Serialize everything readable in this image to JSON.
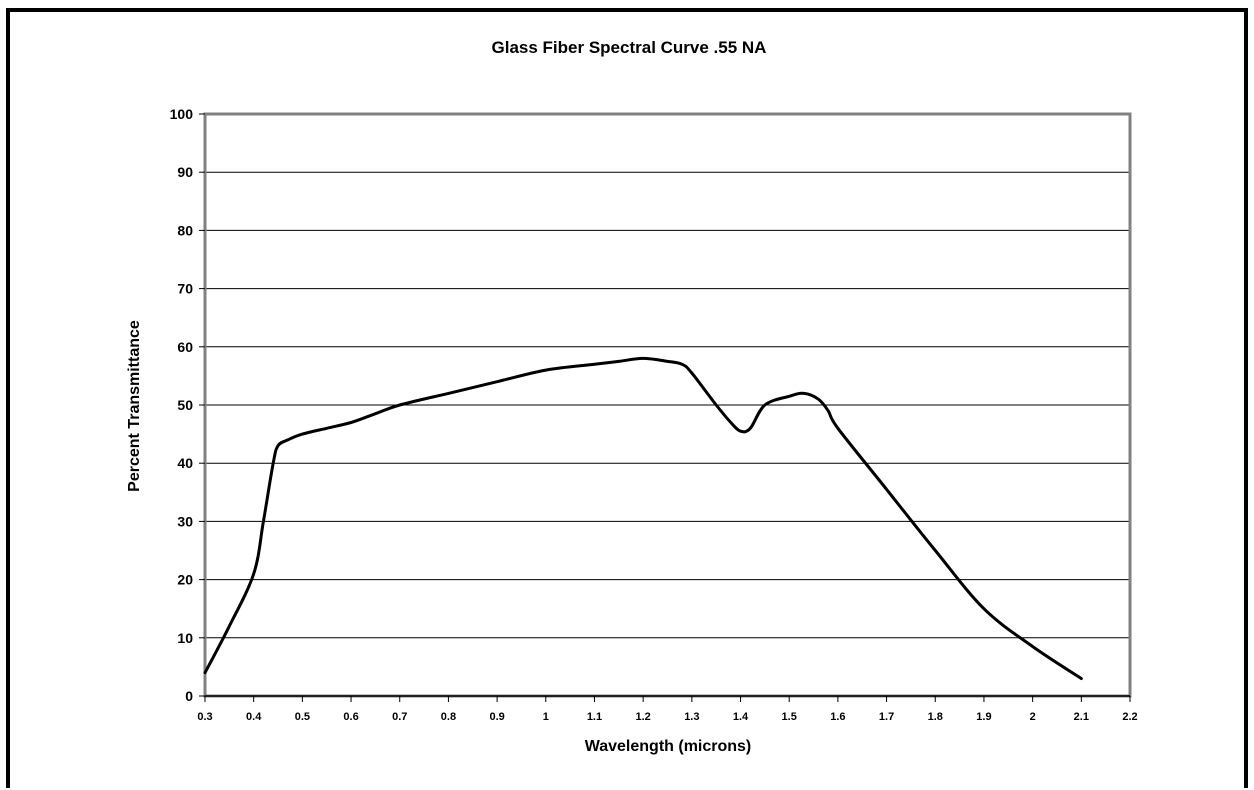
{
  "chart_data": {
    "type": "line",
    "title": "Glass Fiber Spectral Curve .55 NA",
    "xlabel": "Wavelength (microns)",
    "ylabel": "Percent Transmittance",
    "xlim": [
      0.3,
      2.2
    ],
    "ylim": [
      0,
      100
    ],
    "grid": "horizontal",
    "xticks": [
      "0.3",
      "0.4",
      "0.5",
      "0.6",
      "0.7",
      "0.8",
      "0.9",
      "1",
      "1.1",
      "1.2",
      "1.3",
      "1.4",
      "1.5",
      "1.6",
      "1.7",
      "1.8",
      "1.9",
      "2",
      "2.1",
      "2.2"
    ],
    "yticks": [
      "0",
      "10",
      "20",
      "30",
      "40",
      "50",
      "60",
      "70",
      "80",
      "90",
      "100"
    ],
    "series": [
      {
        "x": [
          0.3,
          0.35,
          0.4,
          0.42,
          0.44,
          0.45,
          0.47,
          0.5,
          0.55,
          0.6,
          0.65,
          0.7,
          0.8,
          0.9,
          1.0,
          1.1,
          1.15,
          1.2,
          1.25,
          1.28,
          1.3,
          1.35,
          1.38,
          1.4,
          1.42,
          1.45,
          1.5,
          1.53,
          1.56,
          1.58,
          1.6,
          1.7,
          1.8,
          1.9,
          2.0,
          2.1
        ],
        "y": [
          4,
          12,
          21,
          30,
          40,
          43,
          44,
          45,
          46,
          47,
          48.5,
          50,
          52,
          54,
          56,
          57,
          57.5,
          58,
          57.5,
          57,
          55.5,
          50,
          47,
          45.5,
          46,
          50,
          51.5,
          52,
          51,
          49,
          46,
          35.5,
          25,
          15,
          8.5,
          3
        ]
      }
    ]
  }
}
